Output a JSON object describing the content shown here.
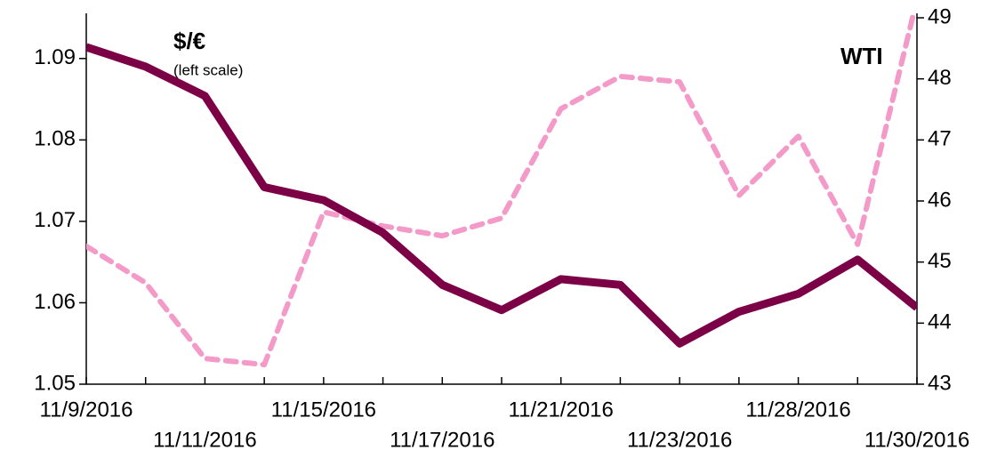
{
  "chart_data": {
    "type": "line",
    "annotations": [
      "(left scale)"
    ],
    "categories": [
      "11/9/2016",
      null,
      "11/11/2016",
      null,
      "11/15/2016",
      null,
      "11/17/2016",
      null,
      "11/21/2016",
      null,
      "11/23/2016",
      null,
      "11/28/2016",
      null,
      "11/30/2016"
    ],
    "series": [
      {
        "name": "$/€",
        "color": "#7b0046",
        "axis": "y",
        "values": [
          1.0914,
          1.089,
          1.0854,
          1.0742,
          1.0726,
          1.0686,
          1.0622,
          1.0591,
          1.0629,
          1.0622,
          1.055,
          1.0589,
          1.0611,
          1.0653,
          1.0594
        ]
      },
      {
        "name": "WTI",
        "color": "#f49ac9",
        "axis": "y2",
        "values": [
          45.26,
          44.66,
          43.42,
          43.32,
          45.82,
          45.59,
          45.43,
          45.72,
          47.51,
          48.04,
          47.95,
          46.09,
          47.06,
          45.29,
          49.3
        ]
      }
    ],
    "ylim": [
      1.05,
      1.095
    ],
    "yticks": [
      {
        "value": 1.05,
        "label": "1.05"
      },
      1.06,
      1.07,
      1.08,
      1.09
    ],
    "y2lim": [
      43,
      49
    ],
    "y2ticks": [
      43,
      44,
      45,
      46,
      47,
      48,
      49
    ],
    "grid": false
  }
}
